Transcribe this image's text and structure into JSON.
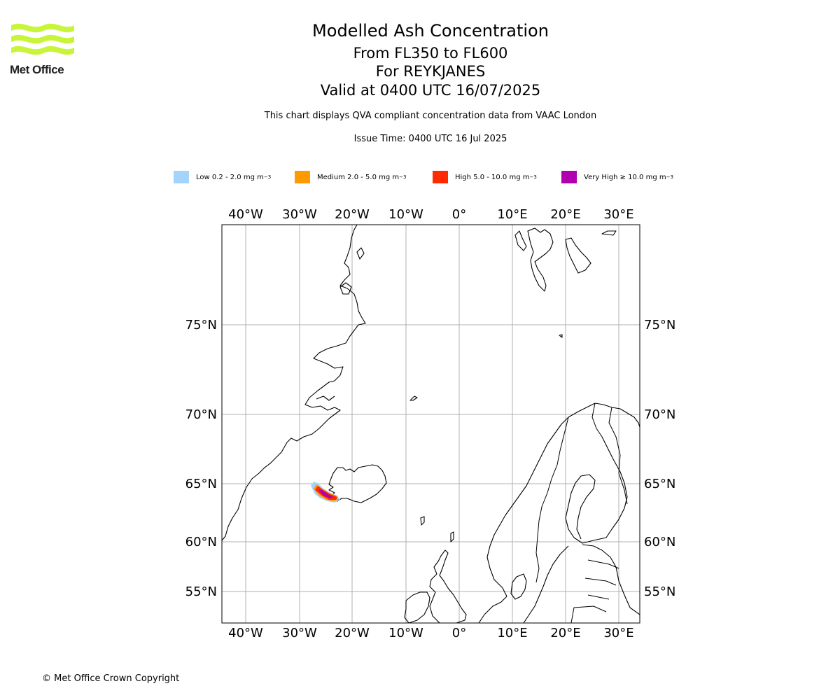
{
  "header": {
    "title": "Modelled Ash Concentration",
    "levels": "From FL350 to FL600",
    "volcano": "For REYKJANES",
    "valid": "Valid at 0400 UTC 16/07/2025",
    "subtitle": "This chart displays QVA compliant concentration data from VAAC London",
    "issue": "Issue Time: 0400 UTC 16 Jul 2025"
  },
  "logo": {
    "text": "Met Office",
    "color": "#c8f53a"
  },
  "legend": [
    {
      "label": "Low 0.2 - 2.0 mg m",
      "sup": "−3",
      "color": "#a4d4fc"
    },
    {
      "label": "Medium 2.0 - 5.0 mg m",
      "sup": "−3",
      "color": "#ff9a00"
    },
    {
      "label": "High 5.0 - 10.0 mg m",
      "sup": "−3",
      "color": "#ff2a00"
    },
    {
      "label": "Very High  ≥  10.0 mg m",
      "sup": "−3",
      "color": "#b100b0"
    }
  ],
  "map": {
    "lon_ticks": [
      "40°W",
      "30°W",
      "20°W",
      "10°W",
      "0°",
      "10°E",
      "20°E",
      "30°E"
    ],
    "lat_ticks": [
      "75°N",
      "70°N",
      "65°N",
      "60°N",
      "55°N"
    ]
  },
  "footer": {
    "copyright": "© Met Office Crown Copyright"
  }
}
